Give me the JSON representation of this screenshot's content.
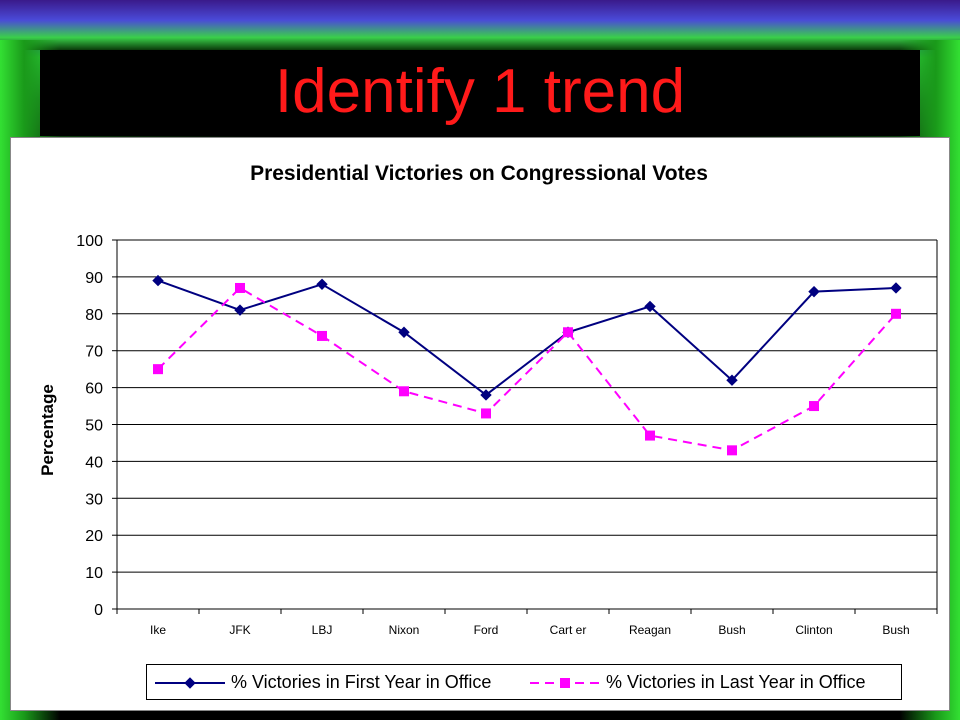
{
  "slide": {
    "title": "Identify 1 trend"
  },
  "colors": {
    "title": "#ff1a1a",
    "series1": "#000080",
    "series2": "#ff00ff"
  },
  "chart_data": {
    "type": "line",
    "title": "Presidential Victories on Congressional Votes",
    "xlabel": "",
    "ylabel": "Percentage",
    "ylim": [
      0,
      100
    ],
    "yticks": [
      0,
      10,
      20,
      30,
      40,
      50,
      60,
      70,
      80,
      90,
      100
    ],
    "grid": "horizontal",
    "legend_position": "bottom",
    "categories": [
      "Ike",
      "JFK",
      "LBJ",
      "Nixon",
      "Ford",
      "Cart er",
      "Reagan",
      "Bush",
      "Clinton",
      "Bush"
    ],
    "series": [
      {
        "name": "% Victories in First Year in Office",
        "values": [
          89,
          81,
          88,
          75,
          58,
          75,
          82,
          62,
          86,
          87
        ],
        "marker": "diamond",
        "line": "solid"
      },
      {
        "name": "% Victories in Last Year in Office",
        "values": [
          65,
          87,
          74,
          59,
          53,
          75,
          47,
          43,
          55,
          80
        ],
        "marker": "square",
        "line": "dashed"
      }
    ]
  }
}
